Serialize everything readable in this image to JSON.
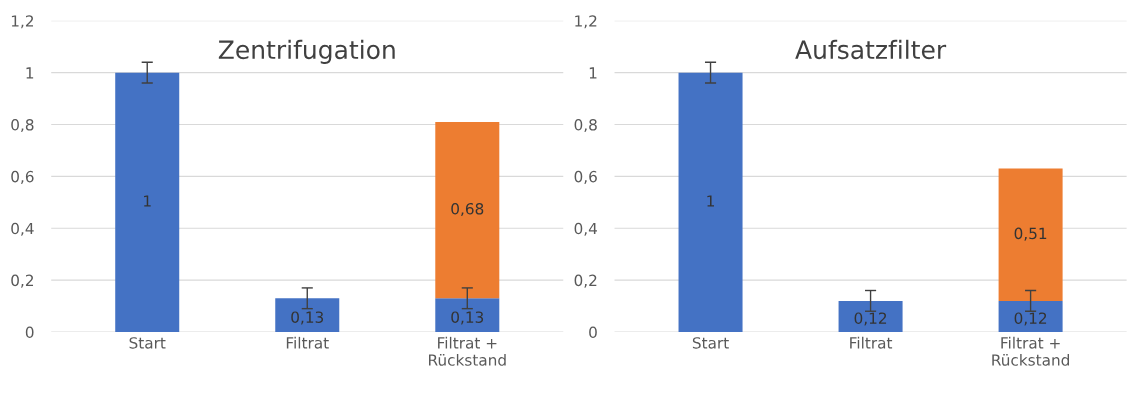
{
  "chart_data": [
    {
      "type": "bar",
      "title": "Zentrifugation",
      "stacked": true,
      "categories": [
        "Start",
        "Filtrat",
        "Filtrat +\nRückstand"
      ],
      "series": [
        {
          "color": "#4472c4",
          "values": [
            1,
            0.13,
            0.13
          ],
          "errors": [
            0.04,
            0.04,
            0.04
          ],
          "value_labels": [
            "1",
            "0,13",
            "0,13"
          ]
        },
        {
          "color": "#ed7d31",
          "values": [
            null,
            null,
            0.68
          ],
          "value_labels": [
            null,
            null,
            "0,68"
          ]
        }
      ],
      "ylim": [
        0,
        1.2
      ],
      "yticks": [
        0,
        {
          "value": 0.2,
          "label": "0,2"
        },
        {
          "value": 0.4,
          "label": "0,4"
        },
        {
          "value": 0.6,
          "label": "0,6"
        },
        {
          "value": 0.8,
          "label": "0,8"
        },
        1,
        {
          "value": 1.2,
          "label": "1,2"
        }
      ],
      "grid": "y"
    },
    {
      "type": "bar",
      "title": "Aufsatzfilter",
      "stacked": true,
      "categories": [
        "Start",
        "Filtrat",
        "Filtrat +\nRückstand"
      ],
      "series": [
        {
          "color": "#4472c4",
          "values": [
            1,
            0.12,
            0.12
          ],
          "errors": [
            0.04,
            0.04,
            0.04
          ],
          "value_labels": [
            "1",
            "0,12",
            "0,12"
          ]
        },
        {
          "color": "#ed7d31",
          "values": [
            null,
            null,
            0.51
          ],
          "value_labels": [
            null,
            null,
            "0,51"
          ]
        }
      ],
      "ylim": [
        0,
        1.2
      ],
      "yticks": [
        0,
        {
          "value": 0.2,
          "label": "0,2"
        },
        {
          "value": 0.4,
          "label": "0,4"
        },
        {
          "value": 0.6,
          "label": "0,6"
        },
        {
          "value": 0.8,
          "label": "0,8"
        },
        1,
        {
          "value": 1.2,
          "label": "1,2"
        }
      ],
      "grid": "y"
    }
  ]
}
